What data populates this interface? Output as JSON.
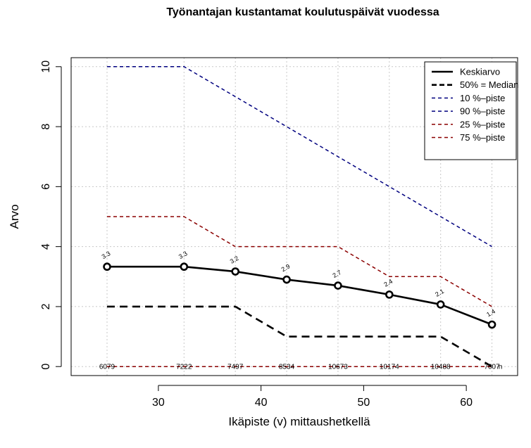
{
  "chart_data": {
    "type": "line",
    "title": "Työnantajan kustantamat koulutuspäivät vuodessa",
    "xlabel": "Ikäpiste (v) mittaushetkellä",
    "ylabel": "Arvo",
    "xlim": [
      21.5,
      65
    ],
    "ylim": [
      -0.3,
      10.3
    ],
    "x_ticks": [
      30,
      40,
      50,
      60
    ],
    "y_ticks": [
      0,
      2,
      4,
      6,
      8,
      10
    ],
    "grid": true,
    "legend_position": "top-right",
    "x": [
      25,
      32.5,
      37.5,
      42.5,
      47.5,
      52.5,
      57.5,
      62.5
    ],
    "series": [
      {
        "name": "Keskiarvo",
        "values": [
          3.33,
          3.33,
          3.17,
          2.9,
          2.7,
          2.4,
          2.07,
          1.4
        ],
        "color": "#000000",
        "style": "solid"
      },
      {
        "name": "50% = Median",
        "values": [
          2,
          2,
          2,
          1,
          1,
          1,
          1,
          0
        ],
        "color": "#000000",
        "style": "dashed"
      },
      {
        "name": "10 %–piste",
        "values": [
          0,
          0,
          0,
          0,
          0,
          0,
          0,
          0
        ],
        "color": "#00007f",
        "style": "dashed"
      },
      {
        "name": "90 %–piste",
        "values": [
          10,
          10,
          9,
          8,
          7,
          6,
          5,
          4
        ],
        "color": "#00007f",
        "style": "dashed"
      },
      {
        "name": "25 %–piste",
        "values": [
          0,
          0,
          0,
          0,
          0,
          0,
          0,
          0
        ],
        "color": "#8b0000",
        "style": "dashed"
      },
      {
        "name": "75 %–piste",
        "values": [
          5,
          5,
          4,
          4,
          4,
          3,
          3,
          2
        ],
        "color": "#8b0000",
        "style": "dashed"
      }
    ],
    "mean_labels": [
      "3.3",
      "3.3",
      "3.2",
      "2.9",
      "2.7",
      "2.4",
      "2.1",
      "1.4"
    ],
    "n_values": [
      "6079",
      "7222",
      "7497",
      "8534",
      "10673",
      "10174",
      "10488",
      "7007"
    ],
    "n_marker": "n"
  }
}
